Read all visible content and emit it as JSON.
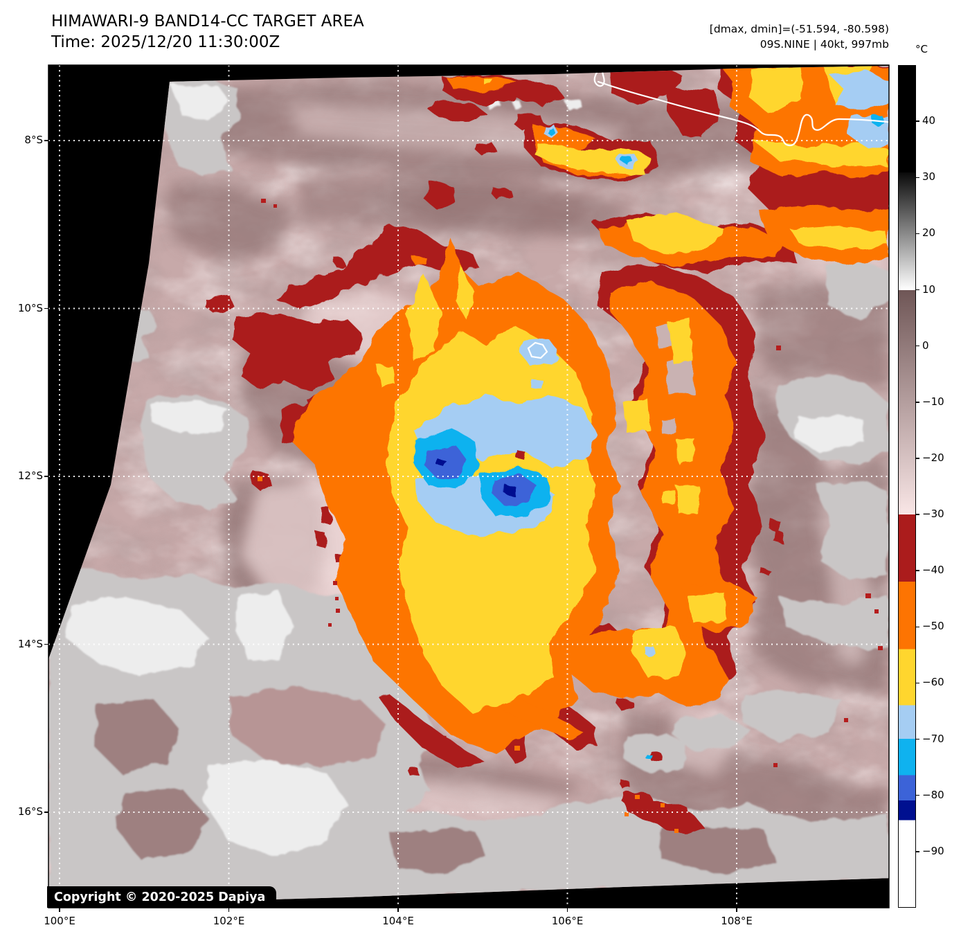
{
  "header": {
    "title_line1": "HIMAWARI-9 BAND14-CC TARGET AREA",
    "title_line2": "Time: 2025/12/20 11:30:00Z",
    "info_line1": "[dmax, dmin]=(-51.594, -80.598)",
    "info_line2": "09S.NINE | 40kt, 997mb"
  },
  "map": {
    "copyright": "Copyright © 2020-2025 Dapiya",
    "grid": {
      "lon_labels": [
        "100°E",
        "102°E",
        "104°E",
        "106°E",
        "108°E"
      ],
      "lon_values": [
        100,
        102,
        104,
        106,
        108
      ],
      "lat_labels": [
        "8°S",
        "10°S",
        "12°S",
        "14°S",
        "16°S"
      ],
      "lat_values": [
        8,
        10,
        12,
        14,
        16
      ]
    }
  },
  "colorbar": {
    "unit": "°C",
    "vmax": 50,
    "vmin": -100,
    "ticks": [
      40,
      30,
      20,
      10,
      0,
      -10,
      -20,
      -30,
      -40,
      -50,
      -60,
      -70,
      -80,
      -90
    ],
    "segments": [
      {
        "from": 50,
        "to": 31,
        "type": "solid",
        "color": "#000000"
      },
      {
        "from": 31,
        "to": 10,
        "type": "gradient",
        "from_color": "#0a0a0a",
        "to_color": "#ffffff"
      },
      {
        "from": 10,
        "to": -30,
        "type": "gradient",
        "from_color": "#6f5656",
        "to_color": "#f9e6e6"
      },
      {
        "from": -30,
        "to": -42,
        "type": "solid",
        "color": "#ab1c1c"
      },
      {
        "from": -42,
        "to": -54,
        "type": "solid",
        "color": "#fd7402"
      },
      {
        "from": -54,
        "to": -64,
        "type": "solid",
        "color": "#ffd62e"
      },
      {
        "from": -64,
        "to": -70,
        "type": "solid",
        "color": "#a5cdf3"
      },
      {
        "from": -70,
        "to": -76.5,
        "type": "solid",
        "color": "#0fb2ef"
      },
      {
        "from": -76.5,
        "to": -81,
        "type": "solid",
        "color": "#3c63d8"
      },
      {
        "from": -81,
        "to": -84.5,
        "type": "solid",
        "color": "#001090"
      },
      {
        "from": -84.5,
        "to": -100,
        "type": "solid",
        "color": "#ffffff"
      }
    ]
  },
  "chart_data": {
    "type": "heatmap",
    "title": "HIMAWARI-9 BAND14-CC TARGET AREA",
    "subtitle": "Time: 2025/12/20 11:30:00Z",
    "x_axis": {
      "tick_labels": [
        "100°E",
        "102°E",
        "104°E",
        "106°E",
        "108°E"
      ],
      "range_deg_east": [
        99.9,
        109.8
      ]
    },
    "y_axis": {
      "tick_labels": [
        "8°S",
        "10°S",
        "12°S",
        "14°S",
        "16°S"
      ],
      "range_deg_north": [
        -17.1,
        -7.1
      ]
    },
    "colorbar": {
      "label": "°C",
      "vmin": -100,
      "vmax": 50,
      "tick_values": [
        40,
        30,
        20,
        10,
        0,
        -10,
        -20,
        -30,
        -40,
        -50,
        -60,
        -70,
        -80,
        -90
      ]
    },
    "annotations": {
      "dmax_c": -51.594,
      "dmin_c": -80.598,
      "storm_id": "09S.NINE",
      "wind": "40kt",
      "pressure": "997mb"
    },
    "grid": true,
    "legend_position": "right-colorbar",
    "description": "Infrared brightness-temperature satellite image of tropical cyclone 09S.NINE centered near 12°S 105°E; cold cloud tops (yellow/blue, -54 to -81°C) at the core surrounded by orange/dark-red convective bands over a warm (pink/gray) background."
  }
}
